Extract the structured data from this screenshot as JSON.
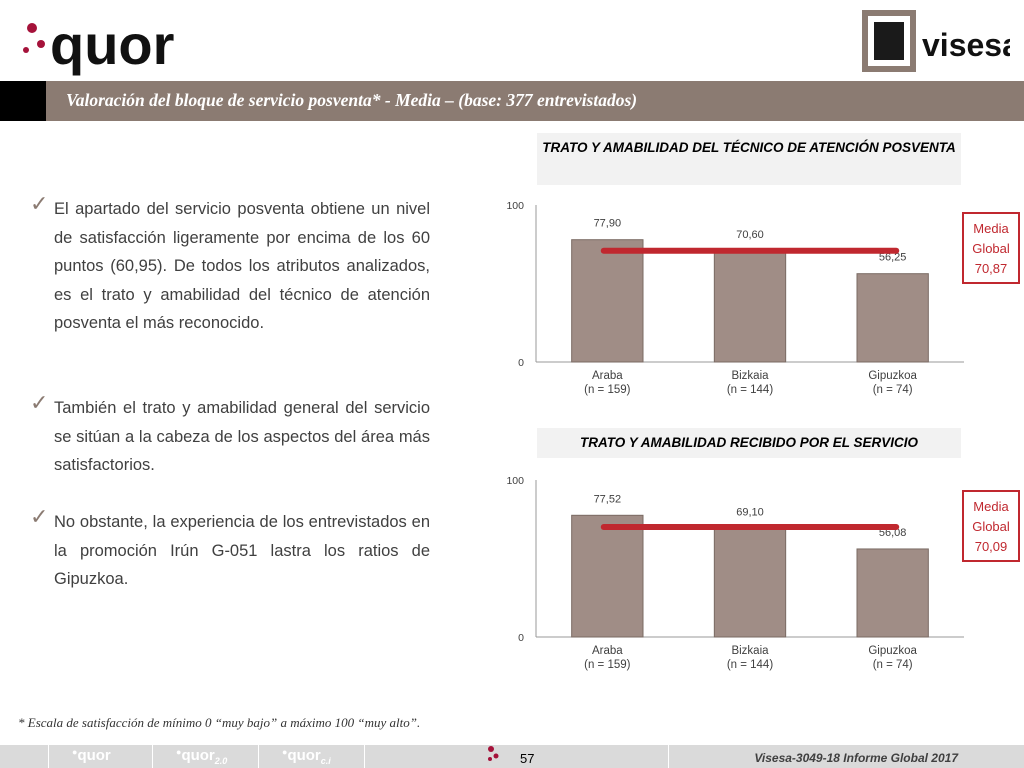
{
  "header": {
    "logo_left_text": "quor",
    "logo_right_text": "visesa",
    "banner_title": "Valoración del bloque de servicio posventa* - Media – (base: 377 entrevistados)"
  },
  "bullets": [
    "El apartado del servicio posventa obtiene un nivel de satisfacción ligeramente por encima de los 60 puntos (60,95). De todos los atributos analizados, es el trato y amabilidad del técnico de atención posventa el más reconocido.",
    "También el trato y amabilidad general del servicio se sitúan a la cabeza de los aspectos del área más satisfactorios.",
    "No obstante, la experiencia de los entrevistados en la promoción Irún G-051 lastra los ratios de Gipuzkoa."
  ],
  "chart_data": [
    {
      "type": "bar",
      "title": "TRATO Y AMABILIDAD DEL TÉCNICO DE ATENCIÓN POSVENTA",
      "categories": [
        "Araba",
        "Bizkaia",
        "Gipuzkoa"
      ],
      "category_bases": [
        "(n = 159)",
        "(n = 144)",
        "(n = 74)"
      ],
      "values": [
        77.9,
        70.6,
        56.25
      ],
      "value_labels": [
        "77,90",
        "70,60",
        "56,25"
      ],
      "ylim": [
        0,
        100
      ],
      "yticks": [
        "0",
        "100"
      ],
      "reference_line": {
        "value": 70.87,
        "label_lines": [
          "Media",
          "Global",
          "70,87"
        ]
      },
      "bar_color": "#a08d86",
      "line_color": "#c0282f",
      "grid": false
    },
    {
      "type": "bar",
      "title": "TRATO Y AMABILIDAD RECIBIDO POR EL SERVICIO",
      "categories": [
        "Araba",
        "Bizkaia",
        "Gipuzkoa"
      ],
      "category_bases": [
        "(n = 159)",
        "(n = 144)",
        "(n = 74)"
      ],
      "values": [
        77.52,
        69.1,
        56.08
      ],
      "value_labels": [
        "77,52",
        "69,10",
        "56,08"
      ],
      "ylim": [
        0,
        100
      ],
      "yticks": [
        "0",
        "100"
      ],
      "reference_line": {
        "value": 70.09,
        "label_lines": [
          "Media",
          "Global",
          "70,09"
        ]
      },
      "bar_color": "#a08d86",
      "line_color": "#c0282f",
      "grid": false
    }
  ],
  "footnote": "* Escala de satisfacción de mínimo 0 “muy bajo” a máximo 100 “muy alto”.",
  "footer": {
    "logos": [
      "quor",
      "quor",
      "quor"
    ],
    "logo_suffixes": [
      "",
      "2.0",
      "c.i"
    ],
    "page_number": "57",
    "reference": "Visesa-3049-18  Informe Global 2017"
  },
  "colors": {
    "banner": "#8b7b72",
    "accent_red": "#c0282f",
    "bar": "#a08d86"
  }
}
